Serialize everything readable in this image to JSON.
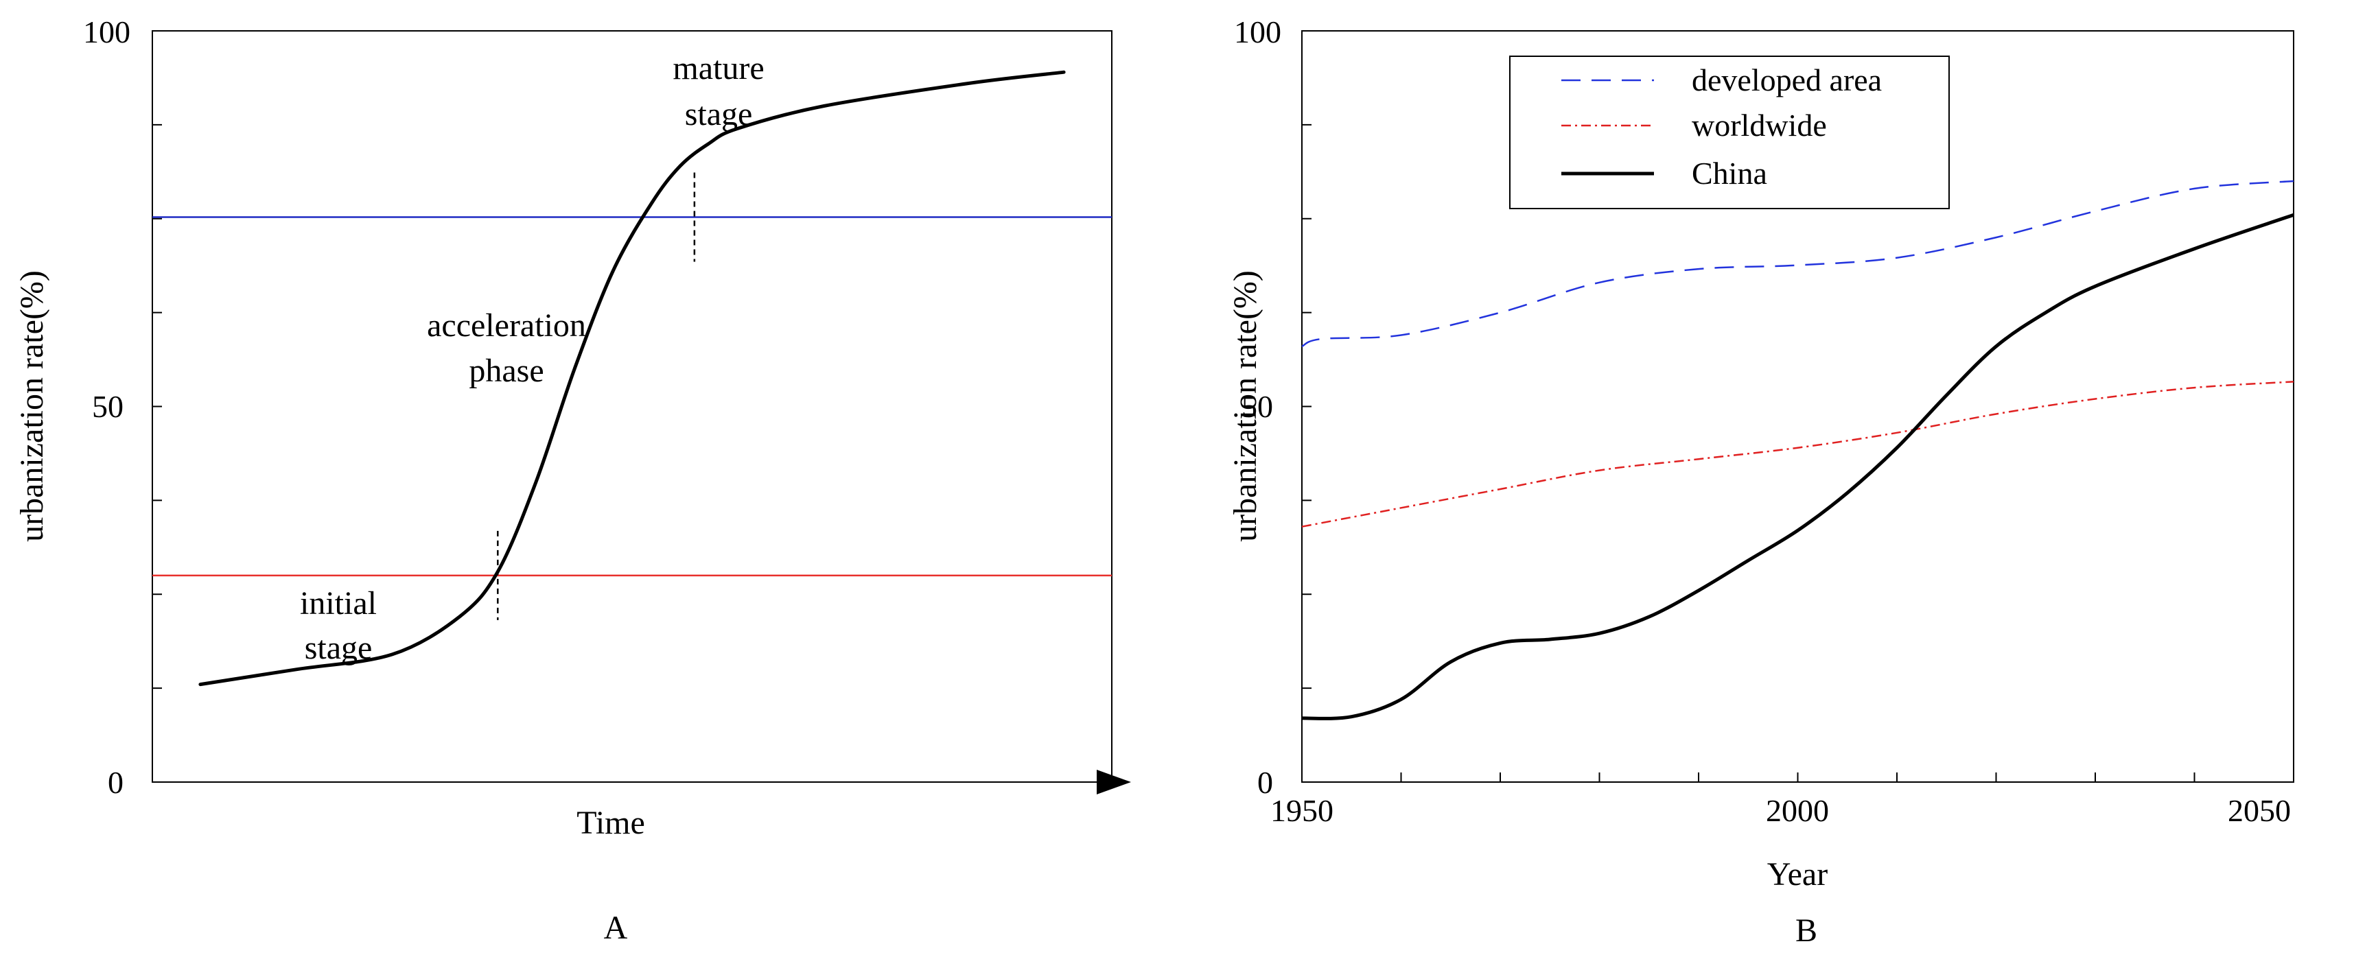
{
  "chart_data": [
    {
      "panel_label": "A",
      "type": "line",
      "xlabel": "Time",
      "ylabel": "urbanization rate(%)",
      "ylim": [
        0,
        100
      ],
      "y_ticks": [
        "0",
        "50",
        "100"
      ],
      "x_axis_arrow": true,
      "series": [
        {
          "color": "#000000",
          "style": "solid",
          "x": [
            0.05,
            0.15,
            0.25,
            0.32,
            0.36,
            0.4,
            0.44,
            0.48,
            0.52,
            0.55,
            0.58,
            0.61,
            0.7,
            0.85,
            0.95
          ],
          "y": [
            13,
            15,
            17,
            22,
            28,
            40,
            55,
            68,
            77,
            82,
            85,
            87,
            90,
            93,
            94.5
          ]
        }
      ],
      "reference_lines": [
        {
          "y": 27.5,
          "color": "#e8302c"
        },
        {
          "y": 75.2,
          "color": "#1f2bc4"
        }
      ],
      "stage_markers": [
        {
          "x": 0.36,
          "y": 27.5
        },
        {
          "x": 0.565,
          "y": 75.2
        }
      ],
      "annotations": [
        {
          "lines": [
            "initial",
            "stage"
          ]
        },
        {
          "lines": [
            "acceleration",
            "phase"
          ]
        },
        {
          "lines": [
            "mature",
            "stage"
          ]
        }
      ]
    },
    {
      "panel_label": "B",
      "type": "line",
      "xlabel": "Year",
      "ylabel": "urbanization rate(%)",
      "xlim": [
        1950,
        2050
      ],
      "ylim": [
        0,
        100
      ],
      "x_ticks": [
        "1950",
        "2000",
        "2050"
      ],
      "y_ticks": [
        "0",
        "50",
        "100"
      ],
      "legend_position": "top-left",
      "series": [
        {
          "name": "developed area",
          "color": "#2233dd",
          "style": "dashed",
          "x": [
            1950,
            1952,
            1960,
            1970,
            1980,
            1990,
            2000,
            2010,
            2020,
            2030,
            2040,
            2050
          ],
          "y": [
            58,
            59,
            59.5,
            62.5,
            66.5,
            68.3,
            68.8,
            69.8,
            72.5,
            76,
            79,
            80
          ]
        },
        {
          "name": "worldwide",
          "color": "#e02020",
          "style": "dashdot",
          "x": [
            1950,
            1960,
            1970,
            1980,
            1990,
            2000,
            2010,
            2020,
            2030,
            2040,
            2050
          ],
          "y": [
            34,
            36.5,
            39,
            41.5,
            43,
            44.5,
            46.5,
            49,
            51,
            52.5,
            53.3
          ]
        },
        {
          "name": "China",
          "color": "#000000",
          "style": "solid",
          "x": [
            1950,
            1955,
            1960,
            1965,
            1970,
            1975,
            1980,
            1985,
            1990,
            1995,
            2000,
            2005,
            2010,
            2015,
            2020,
            2025,
            2030,
            2040,
            2050
          ],
          "y": [
            8.5,
            8.7,
            11,
            16,
            18.5,
            19,
            19.8,
            22,
            25.5,
            29.5,
            33.5,
            38.5,
            44.5,
            51.5,
            58,
            62.5,
            66,
            71,
            75.5
          ]
        }
      ]
    }
  ]
}
